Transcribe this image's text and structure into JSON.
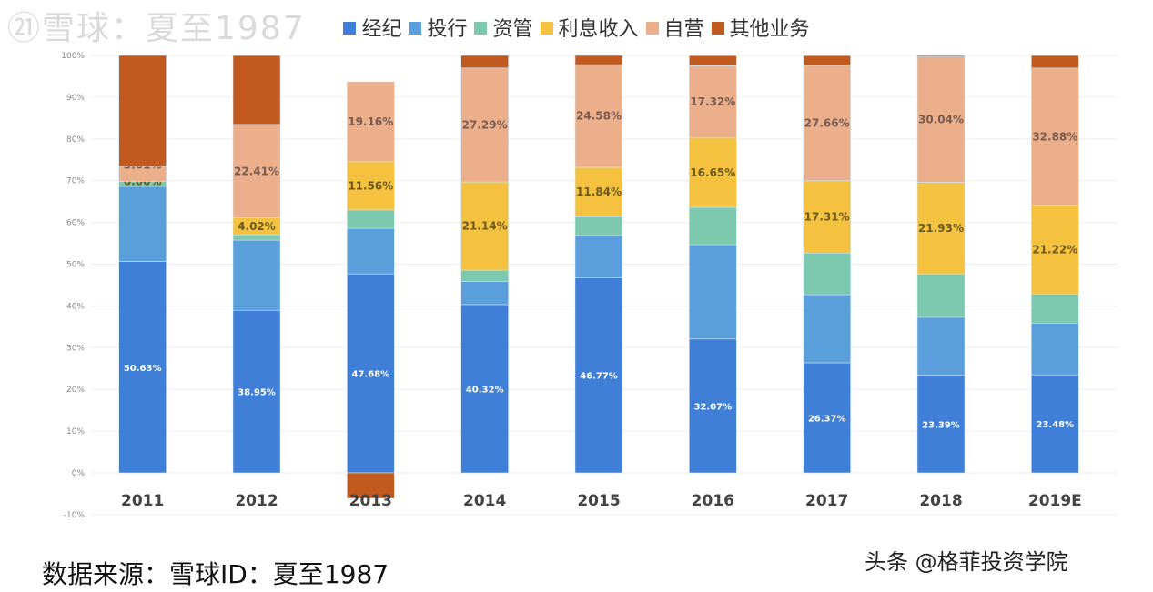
{
  "chart_data": {
    "type": "bar",
    "stacked": true,
    "categories": [
      "2011",
      "2012",
      "2013",
      "2014",
      "2015",
      "2016",
      "2017",
      "2018",
      "2019E"
    ],
    "ylim": [
      -10,
      100
    ],
    "yticks": [
      "-10%",
      "0%",
      "10%",
      "20%",
      "30%",
      "40%",
      "50%",
      "60%",
      "70%",
      "80%",
      "90%",
      "100%"
    ],
    "grid": true,
    "legend_position": "top",
    "series": [
      {
        "name": "经纪",
        "color": "#3f7fd8",
        "values": [
          50.63,
          38.95,
          47.68,
          40.32,
          46.77,
          32.07,
          26.37,
          23.39,
          23.48
        ],
        "labels": [
          "50.63%",
          "38.95%",
          "47.68%",
          "40.32%",
          "46.77%",
          "32.07%",
          "26.37%",
          "23.39%",
          "23.48%"
        ]
      },
      {
        "name": "投行",
        "color": "#5a9fdc",
        "values": [
          18.0,
          16.8,
          10.9,
          5.5,
          10.1,
          22.6,
          16.3,
          13.9,
          12.4
        ],
        "labels": [
          "",
          "",
          "",
          "",
          "",
          "",
          "",
          "",
          ""
        ]
      },
      {
        "name": "资管",
        "color": "#7cc9b0",
        "values": [
          1.2,
          1.3,
          4.4,
          2.75,
          4.5,
          8.9,
          10.0,
          10.4,
          7.0
        ],
        "labels": [
          "",
          "",
          "",
          "",
          "",
          "",
          "",
          "",
          ""
        ]
      },
      {
        "name": "利息收入",
        "color": "#f4c23e",
        "values": [
          0.0,
          4.02,
          11.56,
          21.14,
          11.84,
          16.65,
          17.31,
          21.93,
          21.22
        ],
        "labels": [
          "0.00%",
          "4.02%",
          "11.56%",
          "21.14%",
          "11.84%",
          "16.65%",
          "17.31%",
          "21.93%",
          "21.22%"
        ]
      },
      {
        "name": "自营",
        "color": "#ebb08b",
        "values": [
          3.61,
          22.41,
          19.16,
          27.29,
          24.58,
          17.32,
          27.66,
          30.04,
          32.88
        ],
        "labels": [
          "3.61%",
          "22.41%",
          "19.16%",
          "27.29%",
          "24.58%",
          "17.32%",
          "27.66%",
          "30.04%",
          "32.88%"
        ]
      },
      {
        "name": "其他业务",
        "color": "#c2591f",
        "values": [
          26.56,
          16.5,
          -6.1,
          4.0,
          2.2,
          2.4,
          2.3,
          0.3,
          3.0
        ],
        "labels": [
          "",
          "",
          "",
          "",
          "",
          "",
          "",
          "",
          ""
        ]
      }
    ]
  },
  "footer": {
    "source": "数据来源：雪球ID：夏至1987",
    "credit": "头条 @格菲投资学院",
    "watermark": "㉑雪球：夏至1987"
  }
}
